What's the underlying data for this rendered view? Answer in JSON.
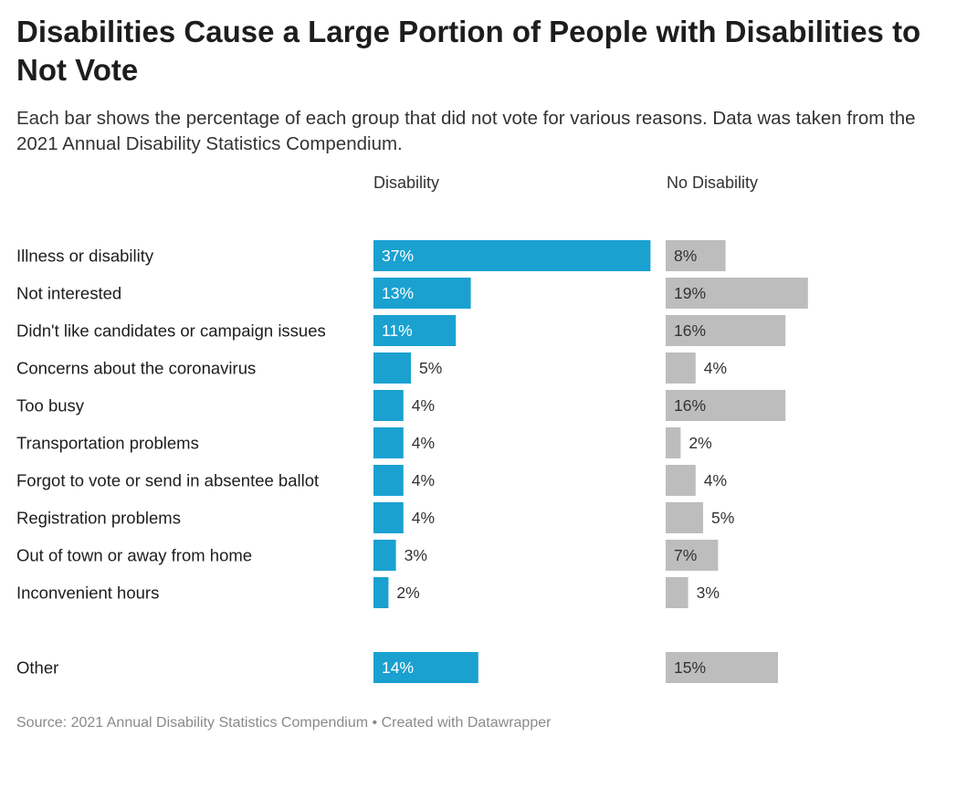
{
  "title": "Disabilities Cause a Large Portion of People with Disabilities to Not Vote",
  "subtitle": "Each bar shows the percentage of each group that did not vote for various reasons. Data was taken from the 2021 Annual Disability Statistics Compendium.",
  "source": "Source: 2021 Annual Disability Statistics Compendium • Created with Datawrapper",
  "colors": {
    "disability": "#1aa1d0",
    "no_disability": "#bdbdbd"
  },
  "chart_data": {
    "type": "bar",
    "orientation": "horizontal",
    "value_suffix": "%",
    "categories": [
      "Illness or disability",
      "Not interested",
      "Didn't like candidates or campaign issues",
      "Concerns about the coronavirus",
      "Too busy",
      "Transportation problems",
      "Forgot to vote or send in absentee ballot",
      "Registration problems",
      "Out of town or away from home",
      "Inconvenient hours",
      "Other"
    ],
    "series": [
      {
        "name": "Disability",
        "values": [
          37,
          13,
          11,
          5,
          4,
          4,
          4,
          4,
          3,
          2,
          14
        ]
      },
      {
        "name": "No Disability",
        "values": [
          8,
          19,
          16,
          4,
          16,
          2,
          4,
          5,
          7,
          3,
          15
        ]
      }
    ]
  }
}
